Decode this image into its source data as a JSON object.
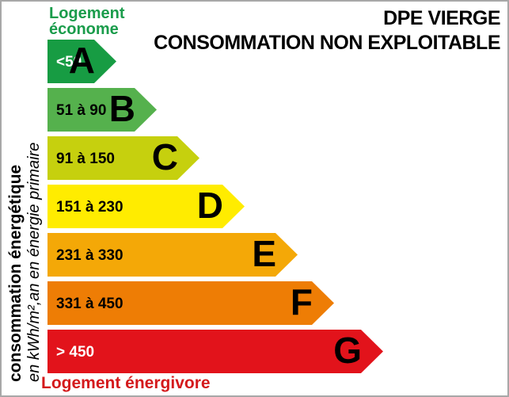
{
  "title": {
    "line1": "DPE VIERGE",
    "line2": "CONSOMMATION NON EXPLOITABLE"
  },
  "labels": {
    "economical": {
      "line1": "Logement",
      "line2": "économe",
      "color": "#1a9c4b"
    },
    "wasteful": {
      "text": "Logement énergivore",
      "color": "#d41a1c"
    },
    "axis_line1": "consommation énergétique",
    "axis_line2": "en kWh/m²,an en énergie primaire"
  },
  "chart_data": {
    "type": "bar",
    "title": "DPE VIERGE — CONSOMMATION NON EXPLOITABLE",
    "ylabel": "consommation énergétique en kWh/m²,an en énergie primaire",
    "legend_top": "Logement économe",
    "legend_bottom": "Logement énergivore",
    "bars": [
      {
        "letter": "A",
        "range": "<50",
        "min": 0,
        "max": 50,
        "color": "#179c43",
        "range_color": "#ffffff"
      },
      {
        "letter": "B",
        "range": "51 à 90",
        "min": 51,
        "max": 90,
        "color": "#55b14d",
        "range_color": "#000000"
      },
      {
        "letter": "C",
        "range": "91 à 150",
        "min": 91,
        "max": 150,
        "color": "#c6d00e",
        "range_color": "#000000"
      },
      {
        "letter": "D",
        "range": "151 à 230",
        "min": 151,
        "max": 230,
        "color": "#ffec00",
        "range_color": "#000000"
      },
      {
        "letter": "E",
        "range": "231 à 330",
        "min": 231,
        "max": 330,
        "color": "#f4a807",
        "range_color": "#000000"
      },
      {
        "letter": "F",
        "range": "331 à 450",
        "min": 331,
        "max": 450,
        "color": "#ee7d05",
        "range_color": "#000000"
      },
      {
        "letter": "G",
        "range": "> 450",
        "min": 450,
        "max": null,
        "color": "#e2131b",
        "range_color": "#ffffff"
      }
    ]
  }
}
